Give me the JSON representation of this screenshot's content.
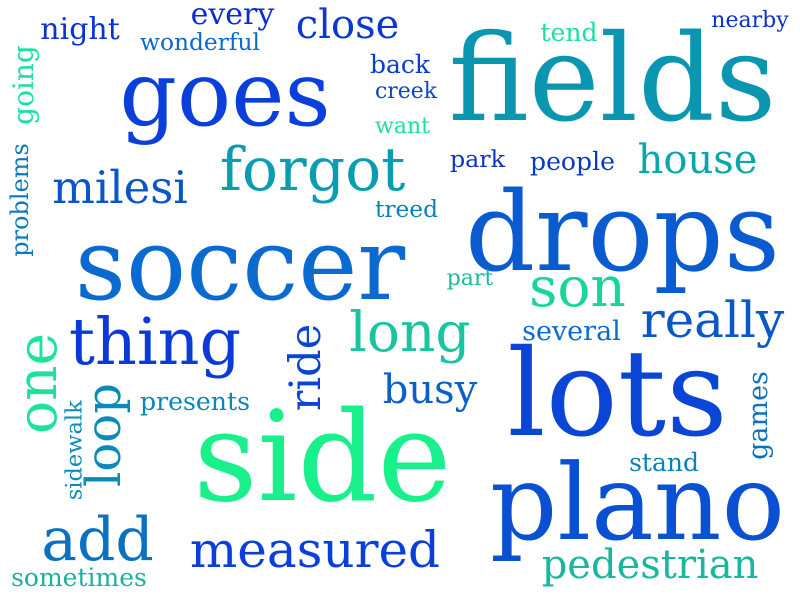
{
  "background": "#ffffff",
  "words": [
    {
      "id": "goes",
      "text": "goes",
      "color": "#0a3fdb",
      "rot": 0
    },
    {
      "id": "fields",
      "text": "fields",
      "color": "#0a96b0",
      "rot": 0
    },
    {
      "id": "soccer",
      "text": "soccer",
      "color": "#0a6ad0",
      "rot": 0
    },
    {
      "id": "drops",
      "text": "drops",
      "color": "#0a5ad0",
      "rot": 0
    },
    {
      "id": "lots",
      "text": "lots",
      "color": "#0a45d6",
      "rot": 0
    },
    {
      "id": "side",
      "text": "side",
      "color": "#19f08c",
      "rot": 0
    },
    {
      "id": "plano",
      "text": "plano",
      "color": "#0a50d3",
      "rot": 0
    },
    {
      "id": "forgot",
      "text": "forgot",
      "color": "#0a9cb0",
      "rot": 0
    },
    {
      "id": "thing",
      "text": "thing",
      "color": "#0a3ad8",
      "rot": 0
    },
    {
      "id": "measured",
      "text": "measured",
      "color": "#0a40d9",
      "rot": 0
    },
    {
      "id": "milesi",
      "text": "milesi",
      "color": "#0a55c9",
      "rot": 0
    },
    {
      "id": "son",
      "text": "son",
      "color": "#1ad59a",
      "rot": 0
    },
    {
      "id": "long",
      "text": "long",
      "color": "#1ac4a0",
      "rot": 0
    },
    {
      "id": "really",
      "text": "really",
      "color": "#0a57c8",
      "rot": 0
    },
    {
      "id": "add",
      "text": "add",
      "color": "#0a71c0",
      "rot": 0
    },
    {
      "id": "house",
      "text": "house",
      "color": "#0aa7a8",
      "rot": 0
    },
    {
      "id": "night",
      "text": "night",
      "color": "#0a32d7",
      "rot": 0
    },
    {
      "id": "every",
      "text": "every",
      "color": "#0a2ad3",
      "rot": 0
    },
    {
      "id": "close",
      "text": "close",
      "color": "#0a38d0",
      "rot": 0
    },
    {
      "id": "one",
      "text": "one",
      "color": "#1de39a",
      "rot": -90
    },
    {
      "id": "ride",
      "text": "ride",
      "color": "#0a44d4",
      "rot": -90
    },
    {
      "id": "loop",
      "text": "loop",
      "color": "#0a8ab8",
      "rot": -90
    },
    {
      "id": "busy",
      "text": "busy",
      "color": "#0a5fc8",
      "rot": 0
    },
    {
      "id": "pedestrian",
      "text": "pedestrian",
      "color": "#1ab6a0",
      "rot": 0
    },
    {
      "id": "going",
      "text": "going",
      "color": "#1be0a0",
      "rot": -90
    },
    {
      "id": "wonderful",
      "text": "wonderful",
      "color": "#0a6ad0",
      "rot": 0
    },
    {
      "id": "back",
      "text": "back",
      "color": "#0a40c8",
      "rot": 0
    },
    {
      "id": "creek",
      "text": "creek",
      "color": "#0a45c4",
      "rot": 0
    },
    {
      "id": "want",
      "text": "want",
      "color": "#1ae0a0",
      "rot": 0
    },
    {
      "id": "tend",
      "text": "tend",
      "color": "#1ae0a0",
      "rot": 0
    },
    {
      "id": "nearby",
      "text": "nearby",
      "color": "#0a32c8",
      "rot": 0
    },
    {
      "id": "park",
      "text": "park",
      "color": "#0a35c4",
      "rot": 0
    },
    {
      "id": "people",
      "text": "people",
      "color": "#0a3ac4",
      "rot": 0
    },
    {
      "id": "treed",
      "text": "treed",
      "color": "#0a82b8",
      "rot": 0
    },
    {
      "id": "problems",
      "text": "problems",
      "color": "#0a7ac0",
      "rot": -90
    },
    {
      "id": "part",
      "text": "part",
      "color": "#1ab8a0",
      "rot": 0
    },
    {
      "id": "several",
      "text": "several",
      "color": "#0a6ad0",
      "rot": 0
    },
    {
      "id": "presents",
      "text": "presents",
      "color": "#0a86b8",
      "rot": 0
    },
    {
      "id": "sidewalk",
      "text": "sidewalk",
      "color": "#0a8cb4",
      "rot": -90
    },
    {
      "id": "games",
      "text": "games",
      "color": "#0a72c0",
      "rot": -90
    },
    {
      "id": "stand",
      "text": "stand",
      "color": "#0a80b8",
      "rot": 0
    },
    {
      "id": "sometimes",
      "text": "sometimes",
      "color": "#1ab0a0",
      "rot": 0
    }
  ]
}
